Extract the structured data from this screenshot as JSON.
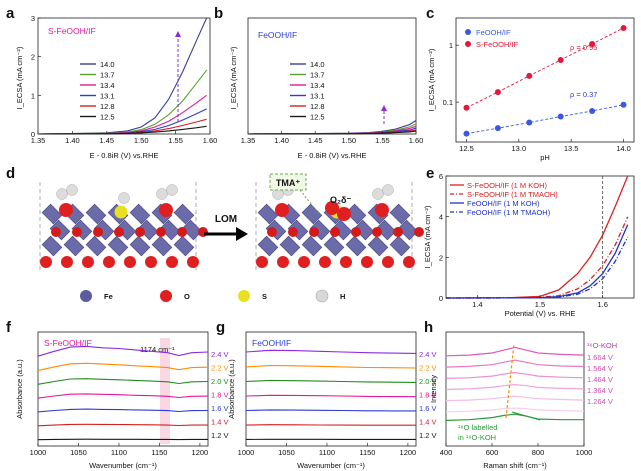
{
  "panels": {
    "a": {
      "letter": "a",
      "title": "S-FeOOH/IF",
      "title_color": "#e0199a",
      "xlabel": "E - 0.8iR (V) vs.RHE",
      "ylabel": "I_ECSA (mA cm⁻²)",
      "xticks": [
        "1.35",
        "1.40",
        "1.45",
        "1.50",
        "1.55",
        "1.60"
      ],
      "yticks": [
        "0",
        "1",
        "2",
        "3"
      ],
      "legend": [
        "14.0",
        "13.7",
        "13.4",
        "13.1",
        "12.8",
        "12.5"
      ]
    },
    "b": {
      "letter": "b",
      "title": "FeOOH/IF",
      "title_color": "#2e3bd6",
      "xlabel": "E - 0.8iR (V) vs.RHE",
      "ylabel": "I_ECSA (mA cm⁻²)",
      "xticks": [
        "1.35",
        "1.40",
        "1.45",
        "1.50",
        "1.55",
        "1.60"
      ],
      "legend": [
        "14.0",
        "13.7",
        "13.4",
        "13.1",
        "12.8",
        "12.5"
      ]
    },
    "c": {
      "letter": "c",
      "xlabel": "pH",
      "ylabel": "I_ECSA (mA cm⁻²)",
      "xticks": [
        "12.5",
        "13.0",
        "13.5",
        "14.0"
      ],
      "yticks": [
        "0.1",
        "1"
      ],
      "legend": [
        "FeOOH/IF",
        "S-FeOOH/IF"
      ],
      "rho_s": "ρ = 0.95",
      "rho_f": "ρ = 0.37"
    },
    "d": {
      "letter": "d",
      "arrow_label": "LOM",
      "tma_label": "TMA⁺",
      "o2_label": "O₂δ⁻",
      "legend": [
        "Fe",
        "O",
        "S",
        "H"
      ]
    },
    "e": {
      "letter": "e",
      "xlabel": "Potential (V) vs. RHE",
      "ylabel": "I_ECSA (mA cm⁻²)",
      "xticks": [
        "1.4",
        "1.5",
        "1.6"
      ],
      "yticks": [
        "0",
        "2",
        "4",
        "6"
      ],
      "legend": [
        "S-FeOOH/IF (1 M KOH)",
        "S-FeOOH/IF (1 M TMAOH)",
        "FeOOH/IF (1 M KOH)",
        "FeOOH/IF (1 M TMAOH)"
      ]
    },
    "f": {
      "letter": "f",
      "title": "S-FeOOH/IF",
      "annotation": "1174 cm⁻¹",
      "xlabel": "Wavenumber (cm⁻¹)",
      "ylabel": "Absorbance (a.u.)",
      "xticks": [
        "1000",
        "1050",
        "1100",
        "1150",
        "1200"
      ],
      "voltages": [
        "2.4 V",
        "2.2 V",
        "2.0 V",
        "1.8 V",
        "1.6 V",
        "1.4 V",
        "1.2 V"
      ]
    },
    "g": {
      "letter": "g",
      "title": "FeOOH/IF",
      "xlabel": "Wavenumber (cm⁻¹)",
      "ylabel": "Absorbance (a.u.)",
      "xticks": [
        "1000",
        "1050",
        "1100",
        "1150",
        "1200"
      ],
      "voltages": [
        "2.4 V",
        "2.2 V",
        "2.0 V",
        "1.8 V",
        "1.6 V",
        "1.4 V",
        "1.2 V"
      ]
    },
    "h": {
      "letter": "h",
      "xlabel": "Raman shift (cm⁻¹)",
      "ylabel": "Intensity",
      "xticks": [
        "400",
        "600",
        "800",
        "1000"
      ],
      "top_label": "¹⁶O-KOH",
      "voltages": [
        "1.664 V",
        "1.564 V",
        "1.464 V",
        "1.364 V",
        "1.264 V"
      ],
      "note_line1": "¹⁸O labelled",
      "note_line2": "in ¹⁶O-KOH"
    }
  },
  "chart_data": [
    {
      "panel": "a",
      "type": "line",
      "title": "S-FeOOH/IF",
      "xlabel": "E - 0.8iR (V) vs.RHE",
      "ylabel": "I_ECSA (mA cm-2)",
      "xlim": [
        1.35,
        1.6
      ],
      "ylim": [
        0,
        3
      ],
      "x": [
        1.35,
        1.4,
        1.45,
        1.48,
        1.5,
        1.52,
        1.54,
        1.56,
        1.58,
        1.595
      ],
      "series": [
        {
          "name": "14.0",
          "color": "#3a3f8f",
          "values": [
            0,
            0.01,
            0.03,
            0.08,
            0.18,
            0.42,
            0.9,
            1.6,
            2.4,
            3.0
          ]
        },
        {
          "name": "13.7",
          "color": "#5aa02c",
          "values": [
            0,
            0.01,
            0.02,
            0.05,
            0.11,
            0.25,
            0.5,
            0.85,
            1.3,
            1.65
          ]
        },
        {
          "name": "13.4",
          "color": "#e0199a",
          "values": [
            0,
            0.005,
            0.015,
            0.04,
            0.08,
            0.18,
            0.33,
            0.55,
            0.8,
            1.0
          ]
        },
        {
          "name": "13.1",
          "color": "#2e3bd6",
          "values": [
            0,
            0.005,
            0.01,
            0.03,
            0.06,
            0.12,
            0.22,
            0.36,
            0.52,
            0.65
          ]
        },
        {
          "name": "12.8",
          "color": "#d62020",
          "values": [
            0,
            0.004,
            0.008,
            0.02,
            0.04,
            0.08,
            0.14,
            0.22,
            0.31,
            0.38
          ]
        },
        {
          "name": "12.5",
          "color": "#1a1a1a",
          "values": [
            0,
            0.003,
            0.006,
            0.015,
            0.03,
            0.05,
            0.08,
            0.12,
            0.16,
            0.2
          ]
        }
      ]
    },
    {
      "panel": "b",
      "type": "line",
      "title": "FeOOH/IF",
      "xlabel": "E - 0.8iR (V) vs.RHE",
      "ylabel": "I_ECSA (mA cm-2)",
      "xlim": [
        1.35,
        1.6
      ],
      "ylim": [
        0,
        3
      ],
      "x": [
        1.35,
        1.45,
        1.5,
        1.53,
        1.55,
        1.57,
        1.59,
        1.6
      ],
      "series": [
        {
          "name": "14.0",
          "color": "#3a3f8f",
          "values": [
            0,
            0.01,
            0.02,
            0.04,
            0.07,
            0.13,
            0.24,
            0.35
          ]
        },
        {
          "name": "13.7",
          "color": "#5aa02c",
          "values": [
            0,
            0.008,
            0.015,
            0.03,
            0.055,
            0.1,
            0.18,
            0.26
          ]
        },
        {
          "name": "13.4",
          "color": "#e0199a",
          "values": [
            0,
            0.006,
            0.012,
            0.025,
            0.045,
            0.08,
            0.14,
            0.2
          ]
        },
        {
          "name": "13.1",
          "color": "#2e3bd6",
          "values": [
            0,
            0.005,
            0.01,
            0.02,
            0.035,
            0.06,
            0.1,
            0.15
          ]
        },
        {
          "name": "12.8",
          "color": "#d62020",
          "values": [
            0,
            0.004,
            0.008,
            0.015,
            0.025,
            0.045,
            0.075,
            0.1
          ]
        },
        {
          "name": "12.5",
          "color": "#1a1a1a",
          "values": [
            0,
            0.003,
            0.006,
            0.012,
            0.02,
            0.035,
            0.055,
            0.075
          ]
        }
      ]
    },
    {
      "panel": "c",
      "type": "scatter",
      "xlabel": "pH",
      "ylabel": "I_ECSA (mA cm-2)",
      "xlim": [
        12.4,
        14.1
      ],
      "ylim": [
        0.02,
        3
      ],
      "yscale": "log",
      "x": [
        12.5,
        12.8,
        13.1,
        13.4,
        13.7,
        14.0
      ],
      "series": [
        {
          "name": "FeOOH/IF",
          "color": "#3a59e0",
          "values": [
            0.028,
            0.035,
            0.044,
            0.056,
            0.07,
            0.09
          ],
          "fit_label": "ρ = 0.37"
        },
        {
          "name": "S-FeOOH/IF",
          "color": "#e0193a",
          "values": [
            0.08,
            0.15,
            0.29,
            0.55,
            1.05,
            2.0
          ],
          "fit_label": "ρ = 0.95"
        }
      ]
    },
    {
      "panel": "e",
      "type": "line",
      "xlabel": "Potential (V) vs. RHE",
      "ylabel": "I_ECSA (mA cm-2)",
      "xlim": [
        1.35,
        1.65
      ],
      "ylim": [
        0,
        6
      ],
      "x": [
        1.35,
        1.45,
        1.5,
        1.53,
        1.56,
        1.58,
        1.6,
        1.62,
        1.64
      ],
      "series": [
        {
          "name": "S-FeOOH/IF (1 M KOH)",
          "color": "#e02020",
          "dash": "solid",
          "values": [
            0,
            0.01,
            0.08,
            0.4,
            1.2,
            2.0,
            3.1,
            4.5,
            6.0
          ]
        },
        {
          "name": "S-FeOOH/IF (1 M TMAOH)",
          "color": "#e02020",
          "dash": "dashdot",
          "values": [
            0,
            0.005,
            0.03,
            0.12,
            0.45,
            0.9,
            1.6,
            2.6,
            4.0
          ]
        },
        {
          "name": "FeOOH/IF (1 M KOH)",
          "color": "#2432c8",
          "dash": "solid",
          "values": [
            0,
            0.004,
            0.02,
            0.07,
            0.25,
            0.6,
            1.2,
            2.2,
            3.6
          ]
        },
        {
          "name": "FeOOH/IF (1 M TMAOH)",
          "color": "#2432c8",
          "dash": "dashdot",
          "values": [
            0,
            0.003,
            0.015,
            0.05,
            0.18,
            0.45,
            0.95,
            1.8,
            3.0
          ]
        }
      ]
    },
    {
      "panel": "f",
      "type": "line",
      "title": "S-FeOOH/IF",
      "xlabel": "Wavenumber (cm-1)",
      "ylabel": "Absorbance (a.u.)",
      "xlim": [
        1000,
        1210
      ],
      "x": [
        1000,
        1020,
        1040,
        1060,
        1080,
        1100,
        1120,
        1140,
        1160,
        1174,
        1190,
        1210
      ],
      "series": [
        {
          "name": "2.4 V",
          "color": "#8a2be2",
          "values": [
            0.2,
            0.55,
            0.85,
            0.9,
            0.8,
            0.75,
            0.65,
            0.55,
            0.45,
            0.25,
            0.45,
            0.5
          ]
        },
        {
          "name": "2.2 V",
          "color": "#ff8c00",
          "values": [
            0.15,
            0.4,
            0.62,
            0.66,
            0.6,
            0.55,
            0.48,
            0.42,
            0.35,
            0.2,
            0.35,
            0.38
          ]
        },
        {
          "name": "2.0 V",
          "color": "#228b22",
          "values": [
            0.12,
            0.32,
            0.5,
            0.52,
            0.48,
            0.44,
            0.4,
            0.35,
            0.3,
            0.18,
            0.3,
            0.32
          ]
        },
        {
          "name": "1.8 V",
          "color": "#e0199a",
          "values": [
            0.1,
            0.25,
            0.38,
            0.4,
            0.37,
            0.34,
            0.3,
            0.27,
            0.23,
            0.14,
            0.23,
            0.24
          ]
        },
        {
          "name": "1.6 V",
          "color": "#2e3bd6",
          "values": [
            0.08,
            0.18,
            0.26,
            0.28,
            0.26,
            0.24,
            0.22,
            0.2,
            0.17,
            0.11,
            0.17,
            0.18
          ]
        },
        {
          "name": "1.4 V",
          "color": "#d62020",
          "values": [
            0.05,
            0.1,
            0.15,
            0.16,
            0.15,
            0.14,
            0.13,
            0.12,
            0.1,
            0.07,
            0.1,
            0.1
          ]
        },
        {
          "name": "1.2 V",
          "color": "#1a1a1a",
          "values": [
            0.02,
            0.04,
            0.05,
            0.06,
            0.05,
            0.05,
            0.05,
            0.04,
            0.04,
            0.03,
            0.04,
            0.04
          ]
        }
      ]
    },
    {
      "panel": "g",
      "type": "line",
      "title": "FeOOH/IF",
      "xlabel": "Wavenumber (cm-1)",
      "ylabel": "Absorbance (a.u.)",
      "xlim": [
        1000,
        1210
      ],
      "x": [
        1000,
        1030,
        1060,
        1090,
        1120,
        1150,
        1180,
        1210
      ],
      "series": [
        {
          "name": "2.4 V",
          "color": "#8a2be2",
          "values": [
            0.5,
            0.62,
            0.6,
            0.55,
            0.5,
            0.45,
            0.42,
            0.4
          ]
        },
        {
          "name": "2.2 V",
          "color": "#ff8c00",
          "values": [
            0.4,
            0.5,
            0.48,
            0.44,
            0.4,
            0.36,
            0.34,
            0.32
          ]
        },
        {
          "name": "2.0 V",
          "color": "#228b22",
          "values": [
            0.32,
            0.4,
            0.38,
            0.35,
            0.32,
            0.29,
            0.27,
            0.26
          ]
        },
        {
          "name": "1.8 V",
          "color": "#e0199a",
          "values": [
            0.25,
            0.3,
            0.29,
            0.27,
            0.25,
            0.22,
            0.21,
            0.2
          ]
        },
        {
          "name": "1.6 V",
          "color": "#2e3bd6",
          "values": [
            0.18,
            0.22,
            0.21,
            0.19,
            0.18,
            0.16,
            0.15,
            0.15
          ]
        },
        {
          "name": "1.4 V",
          "color": "#d62020",
          "values": [
            0.1,
            0.13,
            0.12,
            0.11,
            0.1,
            0.09,
            0.09,
            0.09
          ]
        },
        {
          "name": "1.2 V",
          "color": "#1a1a1a",
          "values": [
            0.04,
            0.05,
            0.05,
            0.05,
            0.04,
            0.04,
            0.04,
            0.04
          ]
        }
      ]
    },
    {
      "panel": "h",
      "type": "line",
      "xlabel": "Raman shift (cm-1)",
      "ylabel": "Intensity",
      "xlim": [
        400,
        1000
      ],
      "x": [
        400,
        500,
        600,
        650,
        700,
        750,
        800,
        900,
        1000
      ],
      "series": [
        {
          "name": "16O-KOH",
          "color": "#e05ab8",
          "values": [
            0.3,
            0.35,
            0.5,
            0.7,
            0.9,
            0.7,
            0.5,
            0.4,
            0.35
          ]
        },
        {
          "name": "1.664 V",
          "color": "#e878c8",
          "values": [
            0.28,
            0.33,
            0.45,
            0.62,
            0.78,
            0.62,
            0.45,
            0.36,
            0.32
          ]
        },
        {
          "name": "1.564 V",
          "color": "#eb90d2",
          "values": [
            0.26,
            0.3,
            0.42,
            0.56,
            0.68,
            0.56,
            0.42,
            0.34,
            0.3
          ]
        },
        {
          "name": "1.464 V",
          "color": "#efa6da",
          "values": [
            0.25,
            0.29,
            0.4,
            0.52,
            0.6,
            0.52,
            0.4,
            0.33,
            0.29
          ]
        },
        {
          "name": "1.364 V",
          "color": "#f3bde4",
          "values": [
            0.24,
            0.28,
            0.38,
            0.48,
            0.55,
            0.48,
            0.38,
            0.32,
            0.28
          ]
        },
        {
          "name": "1.264 V",
          "color": "#f6cfea",
          "values": [
            0.23,
            0.27,
            0.36,
            0.45,
            0.5,
            0.45,
            0.36,
            0.31,
            0.27
          ]
        },
        {
          "name": "18O labelled in 16O-KOH",
          "color": "#2a9a3a",
          "values": [
            0.4,
            0.45,
            0.6,
            0.75,
            0.85,
            0.7,
            0.5,
            0.45,
            0.45
          ]
        }
      ]
    }
  ]
}
